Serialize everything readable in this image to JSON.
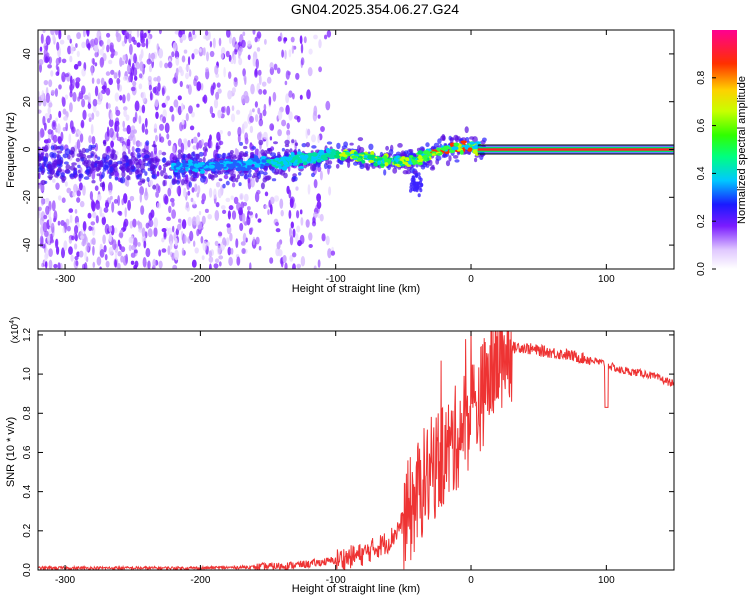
{
  "title": "GN04.2025.354.06.27.G24",
  "chart_data": [
    {
      "type": "heatmap",
      "xlabel": "Height of straight line (km)",
      "ylabel": "Frequency (Hz)",
      "xlim": [
        -320,
        150
      ],
      "ylim": [
        -50,
        50
      ],
      "xticks": [
        -300,
        -200,
        -100,
        0,
        100
      ],
      "yticks": [
        -40,
        -20,
        0,
        20,
        40
      ],
      "ridge": [
        {
          "x": -320,
          "y": -6
        },
        {
          "x": -250,
          "y": -7
        },
        {
          "x": -200,
          "y": -7
        },
        {
          "x": -160,
          "y": -6
        },
        {
          "x": -120,
          "y": -4
        },
        {
          "x": -100,
          "y": -2
        },
        {
          "x": -80,
          "y": -3
        },
        {
          "x": -60,
          "y": -5
        },
        {
          "x": -45,
          "y": -5
        },
        {
          "x": -35,
          "y": -3
        },
        {
          "x": -20,
          "y": 0
        },
        {
          "x": -10,
          "y": 1
        },
        {
          "x": 0,
          "y": 1
        },
        {
          "x": 10,
          "y": 0
        },
        {
          "x": 150,
          "y": 0
        }
      ],
      "colorbar": {
        "label": "Normalized spectral amplitude",
        "range": [
          0,
          1
        ],
        "ticks": [
          "0.0",
          "0.2",
          "0.4",
          "0.6",
          "0.8"
        ]
      }
    },
    {
      "type": "line",
      "xlabel": "Height of straight line (km)",
      "ylabel": "SNR (10 * v/v)",
      "yscale_label": "(x10",
      "yscale_exp": "4",
      "yscale_close": ")",
      "xlim": [
        -320,
        150
      ],
      "ylim": [
        0,
        1.22
      ],
      "xticks": [
        -300,
        -200,
        -100,
        0,
        100
      ],
      "yticks": [
        "0.0",
        "0.2",
        "0.4",
        "0.6",
        "0.8",
        "1.0",
        "1.2"
      ],
      "series": [
        {
          "color": "#ee3333",
          "x": [
            -320,
            -250,
            -200,
            -160,
            -140,
            -120,
            -100,
            -80,
            -60,
            -45,
            -35,
            -25,
            -15,
            -5,
            5,
            15,
            25,
            35,
            50,
            70,
            90,
            100,
            110,
            130,
            150
          ],
          "y": [
            0.01,
            0.01,
            0.01,
            0.015,
            0.02,
            0.03,
            0.05,
            0.08,
            0.15,
            0.3,
            0.45,
            0.55,
            0.62,
            0.75,
            0.85,
            1.0,
            1.12,
            1.14,
            1.12,
            1.1,
            1.07,
            1.05,
            1.02,
            1.0,
            0.95
          ]
        }
      ]
    }
  ]
}
